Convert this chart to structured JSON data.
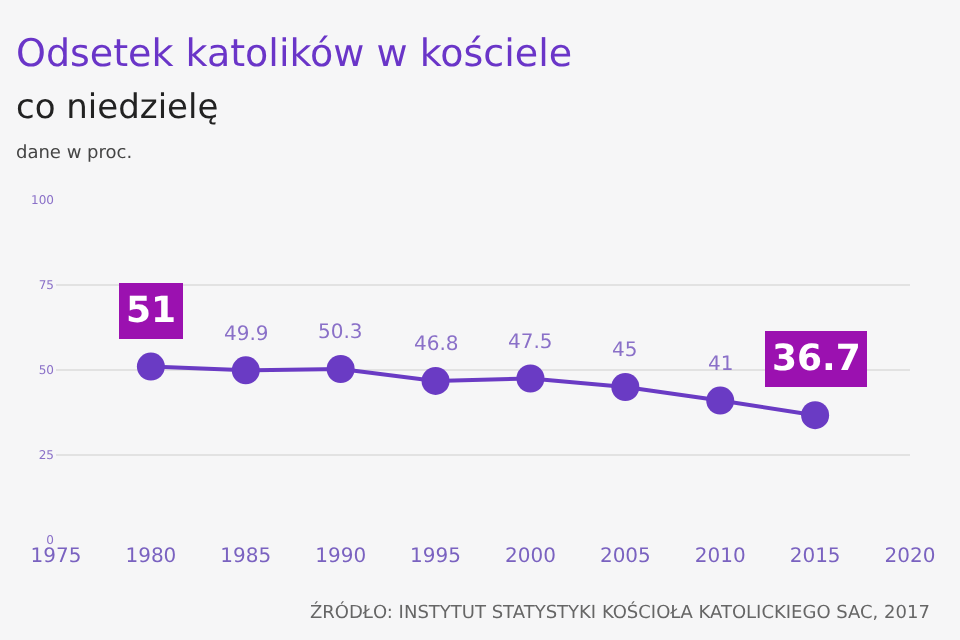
{
  "chart_data": {
    "type": "line",
    "title": "Odsetek katolików w kościele",
    "subtitle": "co niedzielę",
    "ylabel": "dane w proc.",
    "x": [
      1980,
      1985,
      1990,
      1995,
      2000,
      2005,
      2010,
      2015
    ],
    "series": [
      {
        "color": "#6a3bc4",
        "values": [
          51,
          49.9,
          50.3,
          46.8,
          47.5,
          45,
          41,
          36.7
        ]
      }
    ],
    "xlim": [
      1975,
      2020
    ],
    "xticks": [
      1975,
      1980,
      1985,
      1990,
      1995,
      2000,
      2005,
      2010,
      2015,
      2020
    ],
    "ylim": [
      0,
      100
    ],
    "yticks": [
      0,
      25,
      50,
      75,
      100
    ],
    "grid": "y",
    "marker": "circle",
    "line_style": "solid",
    "legend": false,
    "data_labels": true,
    "annotations": [
      "ŹRÓDŁO: INSTYTUT STATYSTYKI KOŚCIOŁA KATOLICKIEGO SAC, 2017"
    ]
  }
}
